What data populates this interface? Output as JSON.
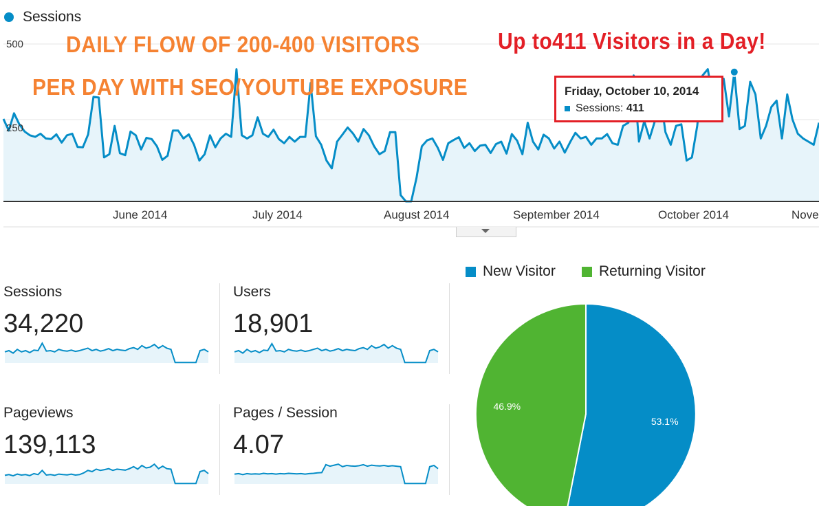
{
  "legend": {
    "series_label": "Sessions"
  },
  "promo": {
    "line1": "DAILY FLOW OF 200-400 VISITORS",
    "line2": "PER DAY WITH SEO/YOUTUBE EXPOSURE",
    "peak": "Up to411 Visitors in a Day!"
  },
  "tooltip": {
    "date": "Friday, October 10, 2014",
    "label": "Sessions:",
    "value": "411"
  },
  "colors": {
    "new_visitor": "#058dc7",
    "returning_visitor": "#50b432",
    "area_fill": "#e7f4fa",
    "annotation": "#e31f26",
    "promo": "#f58232"
  },
  "chart_data": [
    {
      "type": "area",
      "title": "",
      "series": [
        {
          "name": "Sessions"
        }
      ],
      "yticks": [
        "250",
        "500"
      ],
      "ylim": [
        0,
        500
      ],
      "xticks": [
        "June 2014",
        "July 2014",
        "August 2014",
        "September 2014",
        "October 2014",
        "Nove"
      ],
      "x_range": [
        "2014-05-07",
        "2014-11-05"
      ],
      "grid": true,
      "values": [
        262,
        225,
        280,
        245,
        222,
        210,
        205,
        215,
        200,
        198,
        213,
        187,
        210,
        215,
        173,
        172,
        213,
        332,
        330,
        140,
        150,
        240,
        153,
        147,
        222,
        210,
        165,
        202,
        198,
        175,
        132,
        145,
        225,
        225,
        200,
        213,
        180,
        130,
        150,
        210,
        172,
        200,
        215,
        205,
        420,
        210,
        200,
        210,
        267,
        215,
        205,
        228,
        198,
        185,
        205,
        190,
        205,
        205,
        376,
        207,
        180,
        130,
        105,
        190,
        212,
        235,
        216,
        190,
        230,
        210,
        175,
        150,
        160,
        220,
        220,
        20,
        0,
        0,
        75,
        175,
        194,
        200,
        171,
        132,
        185,
        195,
        204,
        170,
        185,
        160,
        177,
        180,
        154,
        182,
        190,
        152,
        214,
        193,
        150,
        250,
        190,
        165,
        212,
        200,
        168,
        190,
        155,
        188,
        218,
        200,
        205,
        180,
        200,
        200,
        214,
        185,
        180,
        240,
        250,
        400,
        190,
        255,
        200,
        255,
        340,
        220,
        180,
        240,
        245,
        130,
        140,
        240,
        400,
        420,
        320,
        340,
        390,
        270,
        411,
        230,
        240,
        380,
        340,
        200,
        240,
        300,
        320,
        200,
        340,
        260,
        215,
        200,
        190,
        180,
        250
      ]
    },
    {
      "type": "pie",
      "title": "",
      "legend": [
        "New Visitor",
        "Returning Visitor"
      ],
      "slices": [
        {
          "label": "New Visitor",
          "value": 53.1,
          "text": "53.1%"
        },
        {
          "label": "Returning Visitor",
          "value": 46.9,
          "text": "46.9%"
        }
      ],
      "legend_position": "top"
    }
  ],
  "metrics": [
    {
      "label": "Sessions",
      "value": "34,220",
      "spark": [
        0.45,
        0.5,
        0.4,
        0.55,
        0.45,
        0.5,
        0.42,
        0.52,
        0.5,
        0.8,
        0.48,
        0.5,
        0.45,
        0.55,
        0.5,
        0.48,
        0.52,
        0.47,
        0.5,
        0.55,
        0.6,
        0.5,
        0.55,
        0.48,
        0.52,
        0.58,
        0.5,
        0.55,
        0.52,
        0.5,
        0.58,
        0.62,
        0.55,
        0.7,
        0.6,
        0.65,
        0.75,
        0.6,
        0.7,
        0.6,
        0.55,
        0.02,
        0.02,
        0.02,
        0.02,
        0.02,
        0.02,
        0.5,
        0.55,
        0.45
      ]
    },
    {
      "label": "Users",
      "value": "18,901",
      "spark": [
        0.45,
        0.5,
        0.4,
        0.55,
        0.45,
        0.5,
        0.42,
        0.52,
        0.5,
        0.78,
        0.48,
        0.5,
        0.45,
        0.55,
        0.5,
        0.48,
        0.52,
        0.47,
        0.5,
        0.55,
        0.6,
        0.5,
        0.55,
        0.48,
        0.52,
        0.58,
        0.5,
        0.55,
        0.52,
        0.5,
        0.58,
        0.62,
        0.55,
        0.7,
        0.6,
        0.65,
        0.75,
        0.6,
        0.7,
        0.6,
        0.55,
        0.02,
        0.02,
        0.02,
        0.02,
        0.02,
        0.02,
        0.5,
        0.55,
        0.45
      ]
    },
    {
      "label": "Pageviews",
      "value": "139,113",
      "spark": [
        0.35,
        0.38,
        0.33,
        0.4,
        0.36,
        0.38,
        0.34,
        0.42,
        0.38,
        0.55,
        0.36,
        0.38,
        0.35,
        0.4,
        0.38,
        0.37,
        0.4,
        0.36,
        0.38,
        0.45,
        0.55,
        0.5,
        0.6,
        0.55,
        0.58,
        0.62,
        0.55,
        0.6,
        0.58,
        0.56,
        0.62,
        0.7,
        0.6,
        0.75,
        0.65,
        0.68,
        0.8,
        0.62,
        0.72,
        0.62,
        0.6,
        0.02,
        0.02,
        0.02,
        0.02,
        0.02,
        0.02,
        0.5,
        0.55,
        0.42
      ]
    },
    {
      "label": "Pages / Session",
      "value": "4.07",
      "spark": [
        0.4,
        0.42,
        0.38,
        0.42,
        0.4,
        0.41,
        0.4,
        0.43,
        0.41,
        0.42,
        0.4,
        0.42,
        0.41,
        0.43,
        0.42,
        0.41,
        0.42,
        0.4,
        0.42,
        0.43,
        0.45,
        0.46,
        0.78,
        0.72,
        0.76,
        0.8,
        0.7,
        0.75,
        0.73,
        0.72,
        0.74,
        0.78,
        0.72,
        0.76,
        0.74,
        0.73,
        0.75,
        0.72,
        0.74,
        0.72,
        0.7,
        0.02,
        0.02,
        0.02,
        0.02,
        0.02,
        0.02,
        0.7,
        0.75,
        0.62
      ]
    }
  ]
}
